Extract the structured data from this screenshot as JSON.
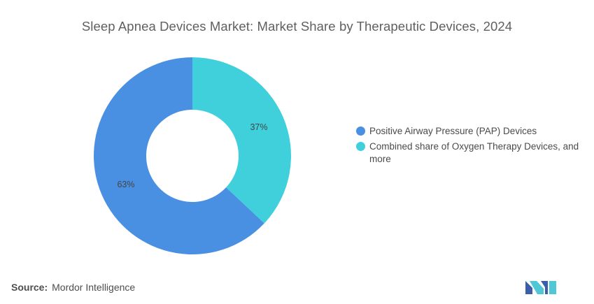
{
  "chart_data": {
    "type": "pie",
    "variant": "donut",
    "title": "Sleep Apnea Devices Market: Market Share by Therapeutic Devices, 2024",
    "categories": [
      "Positive Airway Pressure (PAP) Devices",
      "Combined share of Oxygen Therapy Devices, and more"
    ],
    "values": [
      63,
      37
    ],
    "value_labels": [
      "63%",
      "37%"
    ],
    "colors": [
      "#4a90e2",
      "#40d0dc"
    ],
    "legend_position": "right"
  },
  "footer": {
    "source_label": "Source:",
    "source_text": "Mordor Intelligence"
  },
  "logo": {
    "colors": [
      "#3a5fa8",
      "#4ec8d4"
    ]
  }
}
